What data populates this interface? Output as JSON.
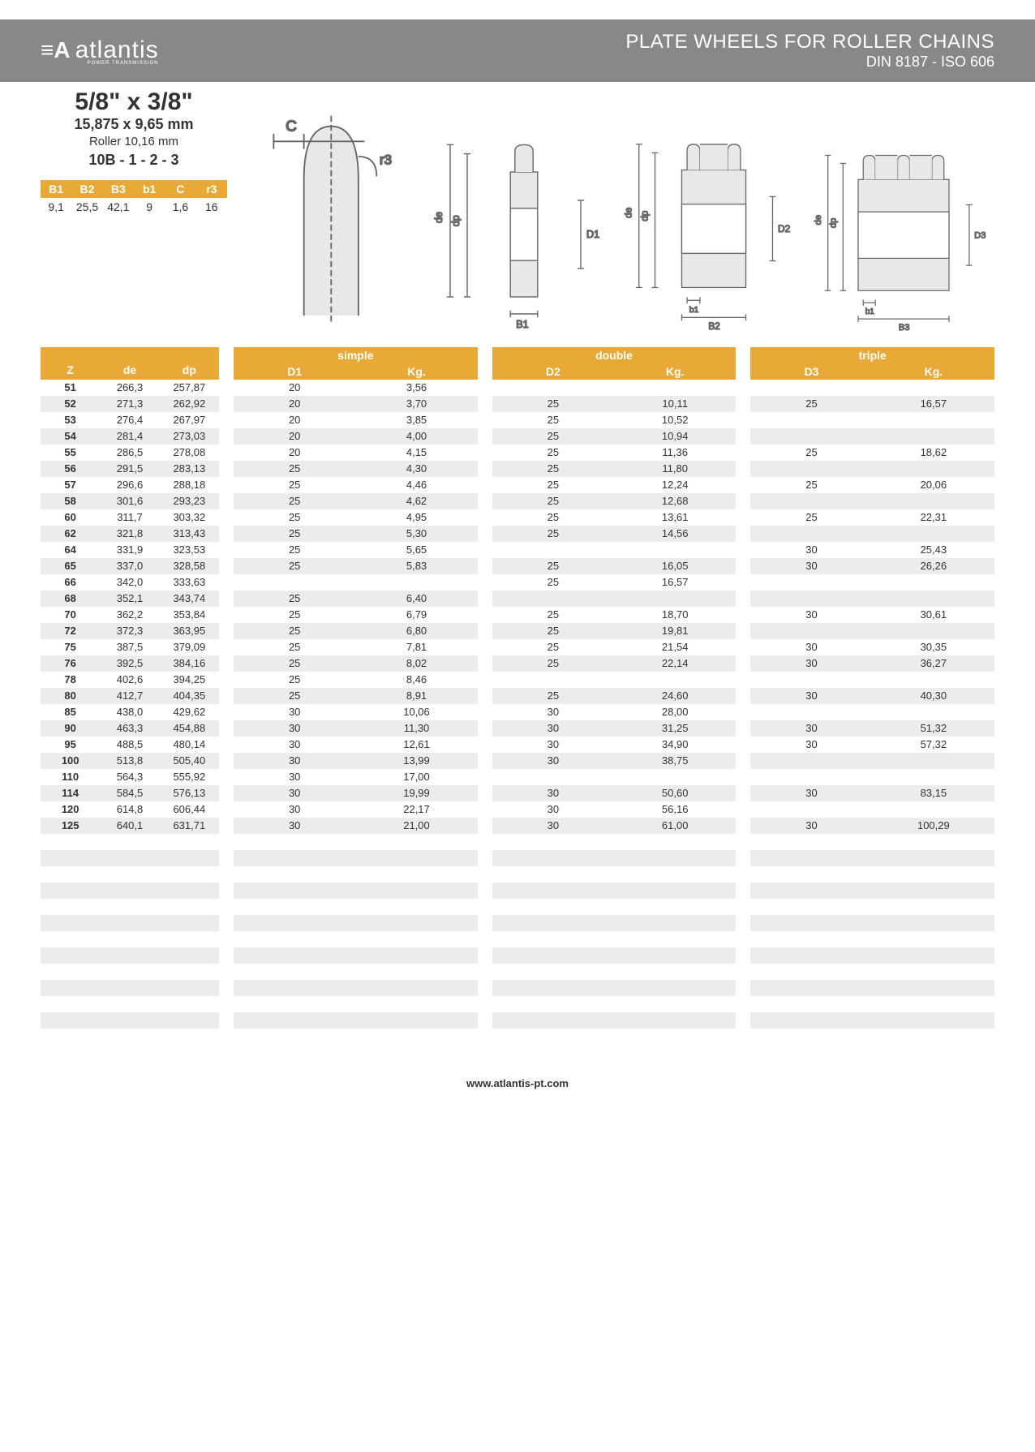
{
  "brand": {
    "name": "atlantis",
    "tagline": "POWER TRANSMISSION"
  },
  "header": {
    "title": "PLATE WHEELS FOR ROLLER CHAINS",
    "subtitle": "DIN 8187 - ISO 606"
  },
  "spec": {
    "size_inch": "5/8\" x 3/8\"",
    "size_mm": "15,875 x 9,65 mm",
    "roller": "Roller 10,16 mm",
    "code": "10B - 1 - 2 - 3"
  },
  "params": {
    "headers": [
      "B1",
      "B2",
      "B3",
      "b1",
      "C",
      "r3"
    ],
    "values": [
      "9,1",
      "25,5",
      "42,1",
      "9",
      "1,6",
      "16"
    ]
  },
  "diagrams": {
    "labels": [
      "C",
      "r3",
      "de",
      "dp",
      "D1",
      "B1",
      "de",
      "dp",
      "D2",
      "b1",
      "B2",
      "de",
      "dp",
      "D3",
      "b1",
      "B3"
    ]
  },
  "groups": {
    "simple": {
      "label": "simple",
      "cols": [
        "D1",
        "Kg."
      ]
    },
    "double": {
      "label": "double",
      "cols": [
        "D2",
        "Kg."
      ]
    },
    "triple": {
      "label": "triple",
      "cols": [
        "D3",
        "Kg."
      ]
    }
  },
  "base_cols": [
    "Z",
    "de",
    "dp"
  ],
  "colors": {
    "header_bg": "#888888",
    "accent": "#e8a936",
    "stripe": "#ececec"
  },
  "rows": [
    {
      "z": "51",
      "de": "266,3",
      "dp": "257,87",
      "d1": "20",
      "kg1": "3,56",
      "d2": "",
      "kg2": "",
      "d3": "",
      "kg3": ""
    },
    {
      "z": "52",
      "de": "271,3",
      "dp": "262,92",
      "d1": "20",
      "kg1": "3,70",
      "d2": "25",
      "kg2": "10,11",
      "d3": "25",
      "kg3": "16,57"
    },
    {
      "z": "53",
      "de": "276,4",
      "dp": "267,97",
      "d1": "20",
      "kg1": "3,85",
      "d2": "25",
      "kg2": "10,52",
      "d3": "",
      "kg3": ""
    },
    {
      "z": "54",
      "de": "281,4",
      "dp": "273,03",
      "d1": "20",
      "kg1": "4,00",
      "d2": "25",
      "kg2": "10,94",
      "d3": "",
      "kg3": ""
    },
    {
      "z": "55",
      "de": "286,5",
      "dp": "278,08",
      "d1": "20",
      "kg1": "4,15",
      "d2": "25",
      "kg2": "11,36",
      "d3": "25",
      "kg3": "18,62"
    },
    {
      "z": "56",
      "de": "291,5",
      "dp": "283,13",
      "d1": "25",
      "kg1": "4,30",
      "d2": "25",
      "kg2": "11,80",
      "d3": "",
      "kg3": ""
    },
    {
      "z": "57",
      "de": "296,6",
      "dp": "288,18",
      "d1": "25",
      "kg1": "4,46",
      "d2": "25",
      "kg2": "12,24",
      "d3": "25",
      "kg3": "20,06"
    },
    {
      "z": "58",
      "de": "301,6",
      "dp": "293,23",
      "d1": "25",
      "kg1": "4,62",
      "d2": "25",
      "kg2": "12,68",
      "d3": "",
      "kg3": ""
    },
    {
      "z": "60",
      "de": "311,7",
      "dp": "303,32",
      "d1": "25",
      "kg1": "4,95",
      "d2": "25",
      "kg2": "13,61",
      "d3": "25",
      "kg3": "22,31"
    },
    {
      "z": "62",
      "de": "321,8",
      "dp": "313,43",
      "d1": "25",
      "kg1": "5,30",
      "d2": "25",
      "kg2": "14,56",
      "d3": "",
      "kg3": ""
    },
    {
      "z": "64",
      "de": "331,9",
      "dp": "323,53",
      "d1": "25",
      "kg1": "5,65",
      "d2": "",
      "kg2": "",
      "d3": "30",
      "kg3": "25,43"
    },
    {
      "z": "65",
      "de": "337,0",
      "dp": "328,58",
      "d1": "25",
      "kg1": "5,83",
      "d2": "25",
      "kg2": "16,05",
      "d3": "30",
      "kg3": "26,26"
    },
    {
      "z": "66",
      "de": "342,0",
      "dp": "333,63",
      "d1": "",
      "kg1": "",
      "d2": "25",
      "kg2": "16,57",
      "d3": "",
      "kg3": ""
    },
    {
      "z": "68",
      "de": "352,1",
      "dp": "343,74",
      "d1": "25",
      "kg1": "6,40",
      "d2": "",
      "kg2": "",
      "d3": "",
      "kg3": ""
    },
    {
      "z": "70",
      "de": "362,2",
      "dp": "353,84",
      "d1": "25",
      "kg1": "6,79",
      "d2": "25",
      "kg2": "18,70",
      "d3": "30",
      "kg3": "30,61"
    },
    {
      "z": "72",
      "de": "372,3",
      "dp": "363,95",
      "d1": "25",
      "kg1": "6,80",
      "d2": "25",
      "kg2": "19,81",
      "d3": "",
      "kg3": ""
    },
    {
      "z": "75",
      "de": "387,5",
      "dp": "379,09",
      "d1": "25",
      "kg1": "7,81",
      "d2": "25",
      "kg2": "21,54",
      "d3": "30",
      "kg3": "30,35"
    },
    {
      "z": "76",
      "de": "392,5",
      "dp": "384,16",
      "d1": "25",
      "kg1": "8,02",
      "d2": "25",
      "kg2": "22,14",
      "d3": "30",
      "kg3": "36,27"
    },
    {
      "z": "78",
      "de": "402,6",
      "dp": "394,25",
      "d1": "25",
      "kg1": "8,46",
      "d2": "",
      "kg2": "",
      "d3": "",
      "kg3": ""
    },
    {
      "z": "80",
      "de": "412,7",
      "dp": "404,35",
      "d1": "25",
      "kg1": "8,91",
      "d2": "25",
      "kg2": "24,60",
      "d3": "30",
      "kg3": "40,30"
    },
    {
      "z": "85",
      "de": "438,0",
      "dp": "429,62",
      "d1": "30",
      "kg1": "10,06",
      "d2": "30",
      "kg2": "28,00",
      "d3": "",
      "kg3": ""
    },
    {
      "z": "90",
      "de": "463,3",
      "dp": "454,88",
      "d1": "30",
      "kg1": "11,30",
      "d2": "30",
      "kg2": "31,25",
      "d3": "30",
      "kg3": "51,32"
    },
    {
      "z": "95",
      "de": "488,5",
      "dp": "480,14",
      "d1": "30",
      "kg1": "12,61",
      "d2": "30",
      "kg2": "34,90",
      "d3": "30",
      "kg3": "57,32"
    },
    {
      "z": "100",
      "de": "513,8",
      "dp": "505,40",
      "d1": "30",
      "kg1": "13,99",
      "d2": "30",
      "kg2": "38,75",
      "d3": "",
      "kg3": ""
    },
    {
      "z": "110",
      "de": "564,3",
      "dp": "555,92",
      "d1": "30",
      "kg1": "17,00",
      "d2": "",
      "kg2": "",
      "d3": "",
      "kg3": ""
    },
    {
      "z": "114",
      "de": "584,5",
      "dp": "576,13",
      "d1": "30",
      "kg1": "19,99",
      "d2": "30",
      "kg2": "50,60",
      "d3": "30",
      "kg3": "83,15"
    },
    {
      "z": "120",
      "de": "614,8",
      "dp": "606,44",
      "d1": "30",
      "kg1": "22,17",
      "d2": "30",
      "kg2": "56,16",
      "d3": "",
      "kg3": ""
    },
    {
      "z": "125",
      "de": "640,1",
      "dp": "631,71",
      "d1": "30",
      "kg1": "21,00",
      "d2": "30",
      "kg2": "61,00",
      "d3": "30",
      "kg3": "100,29"
    }
  ],
  "empty_rows": 13,
  "footer_url": "www.atlantis-pt.com"
}
